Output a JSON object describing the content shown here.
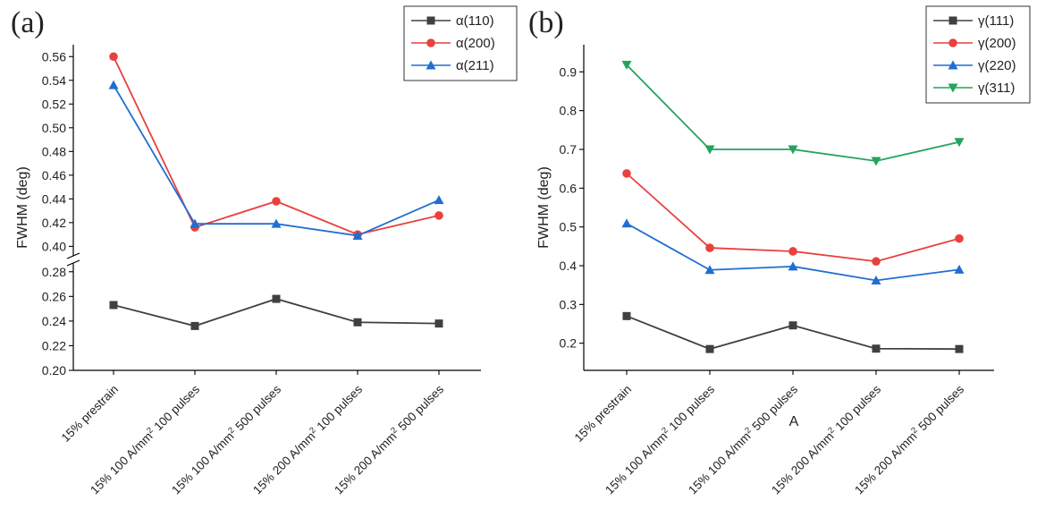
{
  "chart_data": [
    {
      "type": "line",
      "panel_label": "(a)",
      "ylabel": "FWHM (deg)",
      "xlabel": "",
      "categories": [
        "15% prestrain",
        "15% 100 A/mm² 100 pulses",
        "15% 100 A/mm² 500 pulses",
        "15% 200 A/mm² 100 pulses",
        "15% 200 A/mm² 500 pulses"
      ],
      "y_axis_break": true,
      "ylim_lower": [
        0.2,
        0.29
      ],
      "ylim_upper": [
        0.395,
        0.57
      ],
      "yticks_lower": [
        "0.20",
        "0.22",
        "0.24",
        "0.26",
        "0.28"
      ],
      "yticks_upper": [
        "0.40",
        "0.42",
        "0.44",
        "0.46",
        "0.48",
        "0.50",
        "0.52",
        "0.54",
        "0.56"
      ],
      "legend_position": "top-right",
      "series": [
        {
          "name": "α(110)",
          "color": "#404040",
          "marker": "square",
          "values": [
            0.253,
            0.236,
            0.258,
            0.239,
            0.238
          ]
        },
        {
          "name": "α(200)",
          "color": "#e8413d",
          "marker": "circle",
          "values": [
            0.56,
            0.416,
            0.438,
            0.41,
            0.426
          ]
        },
        {
          "name": "α(211)",
          "color": "#1f6fd1",
          "marker": "triangle-up",
          "values": [
            0.536,
            0.419,
            0.419,
            0.409,
            0.439
          ]
        }
      ]
    },
    {
      "type": "line",
      "panel_label": "(b)",
      "ylabel": "FWHM (deg)",
      "xlabel": "A",
      "categories": [
        "15% prestrain",
        "15% 100 A/mm² 100 pulses",
        "15% 100 A/mm² 500 pulses",
        "15% 200 A/mm² 100 pulses",
        "15% 200 A/mm² 500 pulses"
      ],
      "ylim": [
        0.13,
        0.97
      ],
      "yticks": [
        "0.2",
        "0.3",
        "0.4",
        "0.5",
        "0.6",
        "0.7",
        "0.8",
        "0.9"
      ],
      "legend_position": "top-right",
      "series": [
        {
          "name": "γ(111)",
          "color": "#404040",
          "marker": "square",
          "values": [
            0.27,
            0.185,
            0.246,
            0.186,
            0.185
          ]
        },
        {
          "name": "γ(200)",
          "color": "#e8413d",
          "marker": "circle",
          "values": [
            0.638,
            0.446,
            0.437,
            0.411,
            0.47
          ]
        },
        {
          "name": "γ(220)",
          "color": "#1f6fd1",
          "marker": "triangle-up",
          "values": [
            0.509,
            0.389,
            0.398,
            0.362,
            0.39
          ]
        },
        {
          "name": "γ(311)",
          "color": "#22a45d",
          "marker": "triangle-down",
          "values": [
            0.918,
            0.7,
            0.7,
            0.67,
            0.719
          ]
        }
      ]
    }
  ]
}
